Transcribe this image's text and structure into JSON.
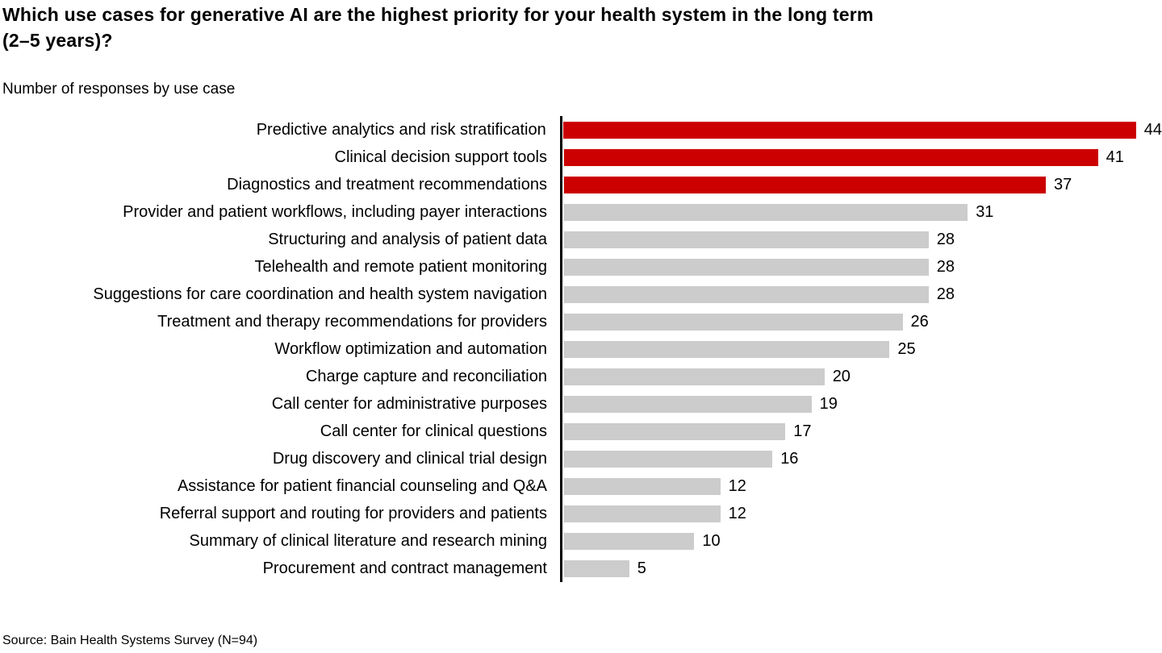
{
  "page": {
    "background_color": "#FFFFFF"
  },
  "header": {
    "title_line1": "Which use cases for generative AI are the highest priority for your health system in the long term",
    "title_line2": "(2–5 years)?",
    "subtitle": "Number of responses by use case"
  },
  "footer": {
    "source": "Source: Bain Health Systems Survey (N=94)"
  },
  "chart_data": {
    "type": "bar",
    "orientation": "horizontal",
    "title": "Which use cases for generative AI are the highest priority for your health system in the long term (2–5 years)?",
    "subtitle": "Number of responses by use case",
    "categories": [
      "Predictive analytics and risk stratification",
      "Clinical decision support tools",
      "Diagnostics and treatment recommendations",
      "Provider and patient workflows, including payer interactions",
      "Structuring and analysis of patient data",
      "Telehealth and remote patient monitoring",
      "Suggestions for care coordination and health system navigation",
      "Treatment and therapy recommendations for providers",
      "Workflow optimization and automation",
      "Charge capture and reconciliation",
      "Call center for administrative purposes",
      "Call center for clinical questions",
      "Drug discovery and clinical trial design",
      "Assistance for patient financial counseling and Q&A",
      "Referral support and routing for providers and patients",
      "Summary of clinical literature and research mining",
      "Procurement and contract management"
    ],
    "values": [
      44,
      41,
      37,
      31,
      28,
      28,
      28,
      26,
      25,
      20,
      19,
      17,
      16,
      12,
      12,
      10,
      5
    ],
    "highlighted_count": 3,
    "colors": {
      "highlight_bar": "#CC0000",
      "default_bar": "#CCCCCC",
      "axis_line": "#000000",
      "text": "#000000"
    },
    "xlim": [
      0,
      44
    ],
    "grid": false,
    "legend": "none",
    "value_labels": "end-of-bar",
    "xlabel": "",
    "ylabel": "",
    "source": "Source: Bain Health Systems Survey (N=94)"
  }
}
